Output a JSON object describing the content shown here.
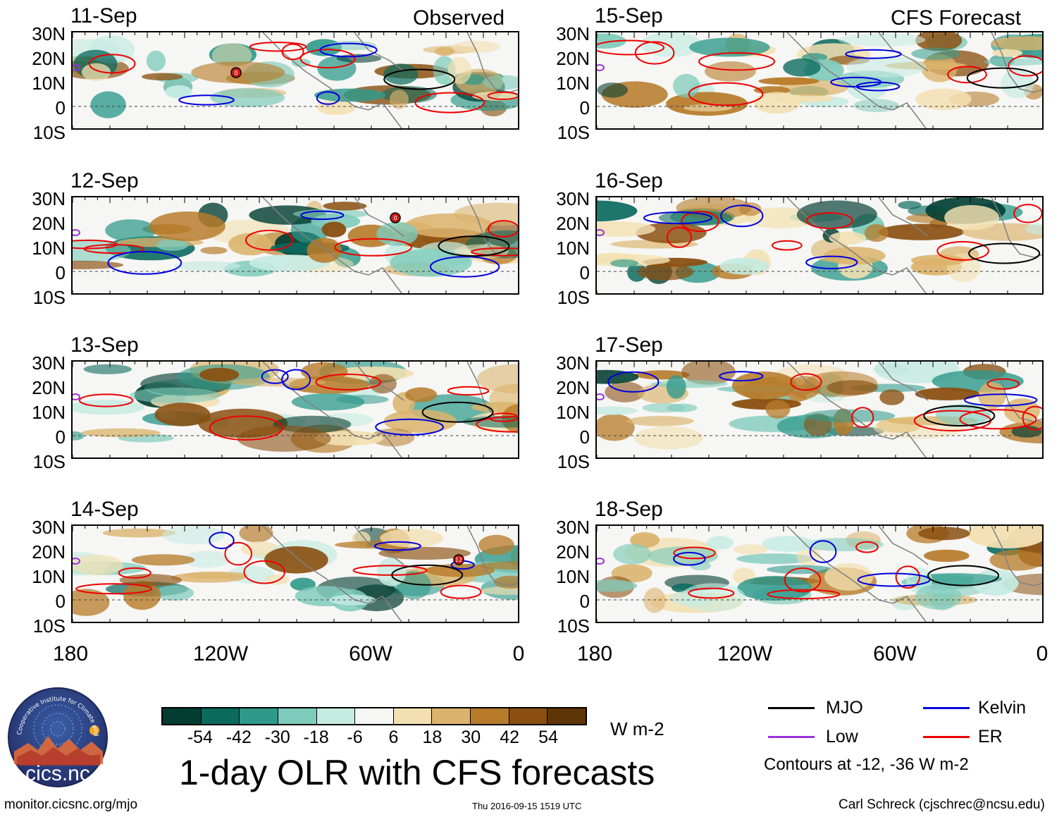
{
  "title": "1-day OLR with CFS forecasts",
  "observed_label": "Observed",
  "forecast_label": "CFS Forecast",
  "latitude_labels": [
    "30N",
    "20N",
    "10N",
    "0",
    "10S"
  ],
  "longitude_labels": [
    "180",
    "120W",
    "60W",
    "0"
  ],
  "panels": [
    {
      "date": "11-Sep",
      "type": "observed",
      "storm_label": "0"
    },
    {
      "date": "12-Sep",
      "type": "observed",
      "storm_label": "0"
    },
    {
      "date": "13-Sep",
      "type": "observed",
      "storm_label": ""
    },
    {
      "date": "14-Sep",
      "type": "observed",
      "storm_label": "12"
    },
    {
      "date": "15-Sep",
      "type": "forecast",
      "storm_label": ""
    },
    {
      "date": "16-Sep",
      "type": "forecast",
      "storm_label": ""
    },
    {
      "date": "17-Sep",
      "type": "forecast",
      "storm_label": ""
    },
    {
      "date": "18-Sep",
      "type": "forecast",
      "storm_label": ""
    }
  ],
  "colorbar": {
    "ticks": [
      "-54",
      "-42",
      "-30",
      "-18",
      "-6",
      "6",
      "18",
      "30",
      "42",
      "54"
    ],
    "colors": [
      "#013d31",
      "#0a6a5e",
      "#2f9a8b",
      "#7fcbbb",
      "#c6ebe2",
      "#f6f6f4",
      "#f3e0b2",
      "#dbb36c",
      "#b77b2a",
      "#8a4f10",
      "#5e3506"
    ],
    "unit": "W m-2"
  },
  "legend": {
    "items": [
      {
        "label": "MJO",
        "color": "#000000"
      },
      {
        "label": "Kelvin",
        "color": "#0000dd"
      },
      {
        "label": "Low",
        "color": "#9b30e0"
      },
      {
        "label": "ER",
        "color": "#ee0000"
      }
    ],
    "note": "Contours at -12, -36 W m-2"
  },
  "logo": {
    "text": "cics.nc",
    "arc_text": "Cooperative Institute for Climate and Satellites"
  },
  "footer": {
    "url": "monitor.cicsnc.org/mjo",
    "timestamp": "Thu 2016-09-15 1519 UTC",
    "credit": "Carl Schreck (cjschrec@ncsu.edu)"
  }
}
